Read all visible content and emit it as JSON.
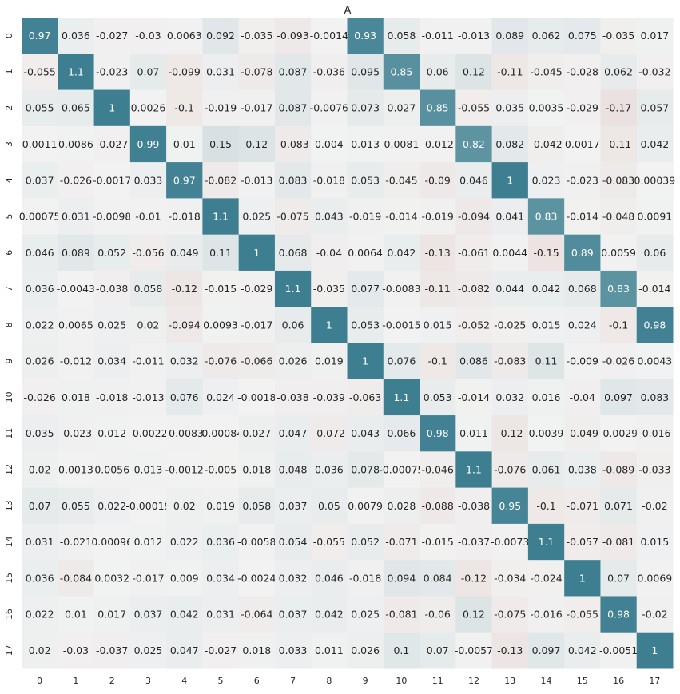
{
  "chart_data": {
    "type": "heatmap",
    "title": "A",
    "xlabel": "",
    "ylabel": "",
    "x_categories": [
      "0",
      "1",
      "2",
      "3",
      "4",
      "5",
      "6",
      "7",
      "8",
      "9",
      "10",
      "11",
      "12",
      "13",
      "14",
      "15",
      "16",
      "17"
    ],
    "y_categories": [
      "0",
      "1",
      "2",
      "3",
      "4",
      "5",
      "6",
      "7",
      "8",
      "9",
      "10",
      "11",
      "12",
      "13",
      "14",
      "15",
      "16",
      "17"
    ],
    "values": [
      [
        0.97,
        0.036,
        -0.027,
        -0.03,
        0.0063,
        0.092,
        -0.035,
        -0.093,
        -0.0014,
        0.93,
        0.058,
        -0.011,
        -0.013,
        0.089,
        0.062,
        0.075,
        -0.035,
        0.017
      ],
      [
        -0.055,
        1.1,
        -0.023,
        0.07,
        -0.099,
        0.031,
        -0.078,
        0.087,
        -0.036,
        0.095,
        0.85,
        0.06,
        0.12,
        -0.11,
        -0.045,
        -0.028,
        0.062,
        -0.032
      ],
      [
        0.055,
        0.065,
        1,
        0.0026,
        -0.1,
        -0.019,
        -0.017,
        0.087,
        -0.0076,
        0.073,
        0.027,
        0.85,
        -0.055,
        0.035,
        0.0035,
        -0.029,
        -0.17,
        0.057
      ],
      [
        0.0011,
        0.0086,
        -0.027,
        0.99,
        0.01,
        0.15,
        0.12,
        -0.083,
        0.004,
        0.013,
        0.0081,
        -0.012,
        0.82,
        0.082,
        -0.042,
        0.0017,
        -0.11,
        0.042
      ],
      [
        0.037,
        -0.026,
        -0.0017,
        0.033,
        0.97,
        -0.082,
        -0.013,
        0.083,
        -0.018,
        0.053,
        -0.045,
        -0.09,
        0.046,
        1,
        0.023,
        -0.023,
        -0.083,
        0.00039
      ],
      [
        0.00075,
        0.031,
        -0.0098,
        -0.01,
        -0.018,
        1.1,
        0.025,
        -0.075,
        0.043,
        -0.019,
        -0.014,
        -0.019,
        -0.094,
        0.041,
        0.83,
        -0.014,
        -0.048,
        0.0091
      ],
      [
        0.046,
        0.089,
        0.052,
        -0.056,
        0.049,
        0.11,
        1,
        0.068,
        -0.04,
        0.0064,
        0.042,
        -0.13,
        -0.061,
        0.0044,
        -0.15,
        0.89,
        0.0059,
        0.06
      ],
      [
        0.036,
        -0.0043,
        -0.038,
        0.058,
        -0.12,
        -0.015,
        -0.029,
        1.1,
        -0.035,
        0.077,
        -0.0083,
        -0.11,
        -0.082,
        0.044,
        0.042,
        0.068,
        0.83,
        -0.014
      ],
      [
        0.022,
        0.0065,
        0.025,
        0.02,
        -0.094,
        0.0093,
        -0.017,
        0.06,
        1,
        0.053,
        -0.0015,
        0.015,
        -0.052,
        -0.025,
        0.015,
        0.024,
        -0.1,
        0.98
      ],
      [
        0.026,
        -0.012,
        0.034,
        -0.011,
        0.032,
        -0.076,
        -0.066,
        0.026,
        0.019,
        1,
        0.076,
        -0.1,
        0.086,
        -0.083,
        0.11,
        -0.009,
        -0.026,
        0.0043
      ],
      [
        -0.026,
        0.018,
        -0.018,
        -0.013,
        0.076,
        0.024,
        -0.0018,
        -0.038,
        -0.039,
        -0.063,
        1.1,
        0.053,
        -0.014,
        0.032,
        0.016,
        -0.04,
        0.097,
        0.083
      ],
      [
        0.035,
        -0.023,
        0.012,
        -0.0022,
        -0.0083,
        -0.00084,
        0.027,
        0.047,
        -0.072,
        0.043,
        0.066,
        0.98,
        0.011,
        -0.12,
        0.0039,
        -0.049,
        -0.0029,
        -0.016
      ],
      [
        0.02,
        0.0013,
        0.0056,
        0.013,
        -0.0012,
        -0.005,
        0.018,
        0.048,
        0.036,
        0.078,
        -0.00075,
        -0.046,
        1.1,
        -0.076,
        0.061,
        0.038,
        -0.089,
        -0.033
      ],
      [
        0.07,
        0.055,
        0.022,
        -0.00019,
        0.02,
        0.019,
        0.058,
        0.037,
        0.05,
        0.0079,
        0.028,
        -0.088,
        -0.038,
        0.95,
        -0.1,
        -0.071,
        0.071,
        -0.02
      ],
      [
        0.031,
        -0.021,
        0.00096,
        0.012,
        0.022,
        0.036,
        -0.0058,
        0.054,
        -0.055,
        0.052,
        -0.071,
        -0.015,
        -0.037,
        -0.0073,
        1.1,
        -0.057,
        -0.081,
        0.015
      ],
      [
        0.036,
        -0.084,
        0.0032,
        -0.017,
        0.009,
        0.034,
        -0.0024,
        0.032,
        0.046,
        -0.018,
        0.094,
        0.084,
        -0.12,
        -0.034,
        -0.024,
        1,
        0.07,
        0.0069
      ],
      [
        0.022,
        0.01,
        0.017,
        0.037,
        0.042,
        0.031,
        -0.064,
        0.037,
        0.042,
        0.025,
        -0.081,
        -0.06,
        0.12,
        -0.075,
        -0.016,
        -0.055,
        0.98,
        -0.02
      ],
      [
        0.02,
        -0.03,
        -0.037,
        0.025,
        0.047,
        -0.027,
        0.018,
        0.033,
        0.011,
        0.026,
        0.1,
        0.07,
        -0.0057,
        -0.13,
        0.097,
        0.042,
        -0.0051,
        1
      ]
    ],
    "colormap": "diverging",
    "color_min": -1,
    "color_max": 1,
    "colors": {
      "positive": "#3d7f91",
      "negative": "#c78e86",
      "neutral": "#f2f2f2",
      "text_dark": "#262626",
      "text_light": "#ffffff"
    },
    "colorbar": false,
    "grid": false
  }
}
